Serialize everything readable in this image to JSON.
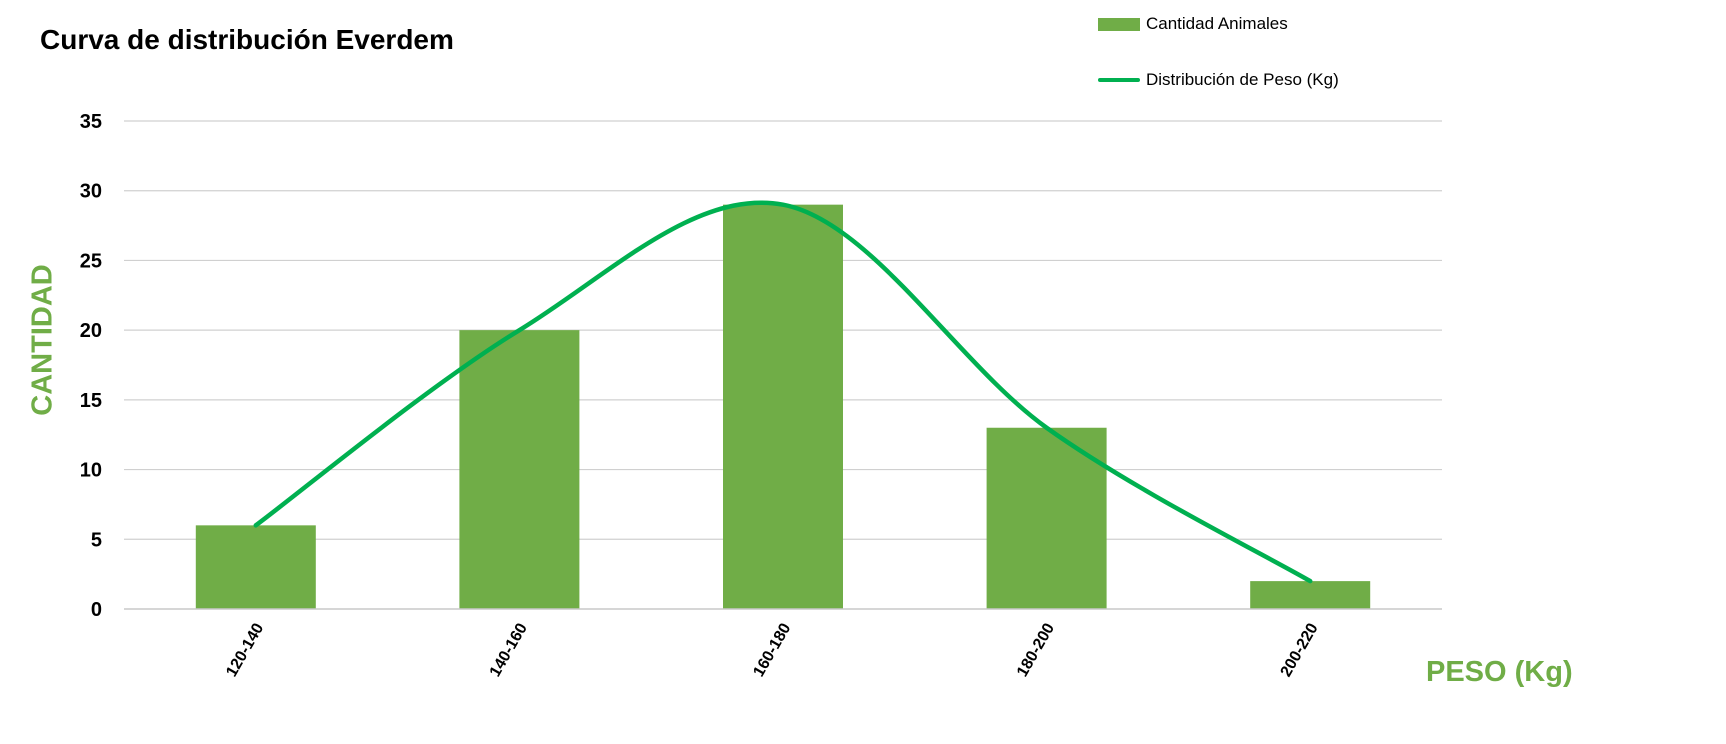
{
  "colors": {
    "bar": "#70ad47",
    "line": "#00b050",
    "axis_title": "#70ad47",
    "grid": "#d0d0d0"
  },
  "chart_data": {
    "type": "bar",
    "title": "Curva de distribución Everdem",
    "xlabel": "PESO (Kg)",
    "ylabel": "CANTIDAD",
    "categories": [
      "120-140",
      "140-160",
      "160-180",
      "180-200",
      "200-220"
    ],
    "ylim": [
      0,
      35
    ],
    "yticks": [
      0,
      5,
      10,
      15,
      20,
      25,
      30,
      35
    ],
    "grid": true,
    "legend_position": "top-right",
    "series": [
      {
        "name": "Cantidad Animales",
        "type": "bar",
        "values": [
          6,
          20,
          29,
          13,
          2
        ]
      },
      {
        "name": "Distribución de Peso (Kg)",
        "type": "line",
        "smooth": true,
        "values": [
          6,
          20,
          29,
          13,
          2
        ]
      }
    ]
  }
}
